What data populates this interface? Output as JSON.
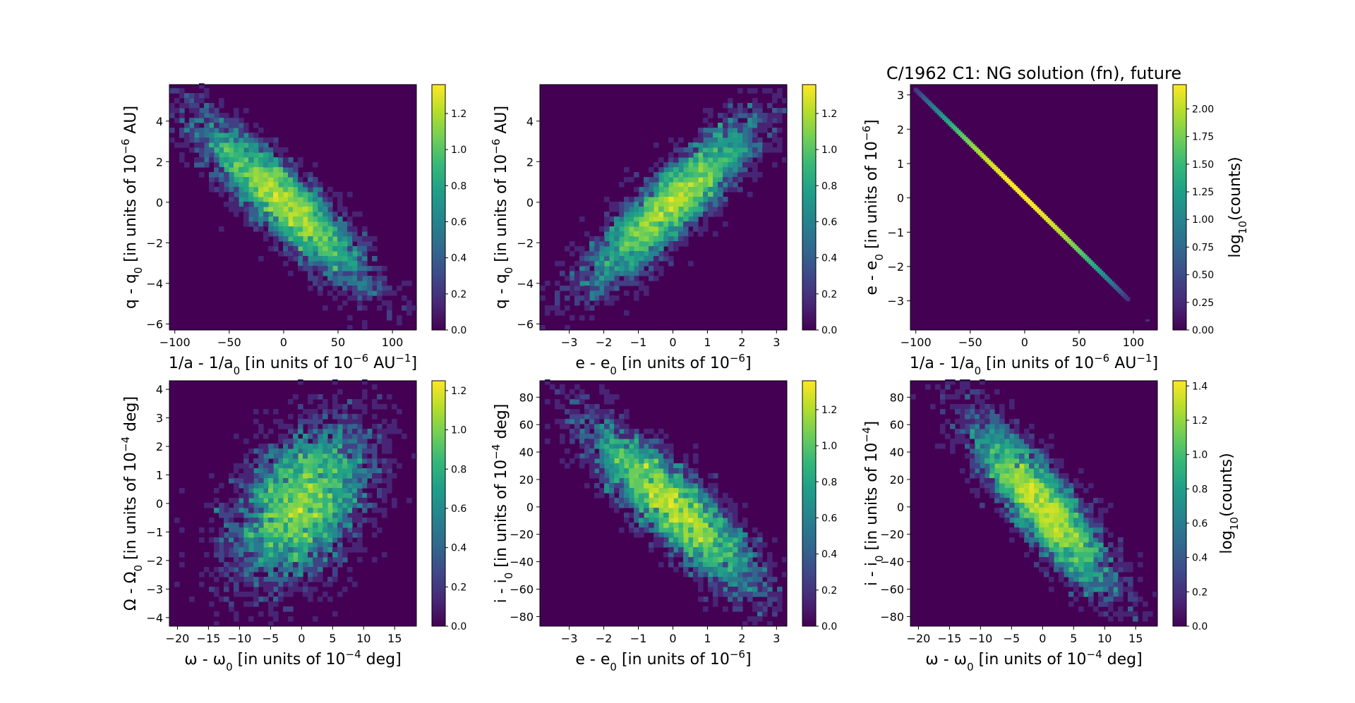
{
  "figure_title": "C/1962 C1: NG solution (fn), future",
  "chart_data": [
    {
      "type": "heatmap",
      "subtype": "hexbin",
      "id": "q-vs-inva",
      "title": "",
      "xlabel": "1/a - 1/a0 [in units of 10^-6 AU^-1]",
      "ylabel": "q - q0 [in units of 10^-6 AU]",
      "xlim": [
        -105,
        122
      ],
      "ylim": [
        -6.3,
        5.8
      ],
      "xticks": [
        -100,
        -50,
        0,
        50,
        100
      ],
      "xtick_labels": [
        "−100",
        "−50",
        "0",
        "50",
        "100"
      ],
      "yticks": [
        -6,
        -4,
        -2,
        0,
        2,
        4
      ],
      "ytick_labels": [
        "−6",
        "−4",
        "−2",
        "0",
        "2",
        "4"
      ],
      "correlation": "negative",
      "center": [
        0,
        0
      ],
      "spread_x": 38,
      "spread_y": 2.0,
      "rho": -0.88,
      "colorbar": {
        "label": "",
        "vmin": 0,
        "vmax": 1.36,
        "ticks": [
          0.0,
          0.2,
          0.4,
          0.6,
          0.8,
          1.0,
          1.2
        ],
        "tick_labels": [
          "0.0",
          "0.2",
          "0.4",
          "0.6",
          "0.8",
          "1.0",
          "1.2"
        ]
      }
    },
    {
      "type": "heatmap",
      "subtype": "hexbin",
      "id": "q-vs-e",
      "title": "",
      "xlabel": "e - e0 [in units of 10^-6]",
      "ylabel": "q - q0 [in units of 10^-6 AU]",
      "xlim": [
        -3.85,
        3.3
      ],
      "ylim": [
        -6.3,
        5.8
      ],
      "xticks": [
        -3,
        -2,
        -1,
        0,
        1,
        2,
        3
      ],
      "xtick_labels": [
        "−3",
        "−2",
        "−1",
        "0",
        "1",
        "2",
        "3"
      ],
      "yticks": [
        -6,
        -4,
        -2,
        0,
        2,
        4
      ],
      "ytick_labels": [
        "−6",
        "−4",
        "−2",
        "0",
        "2",
        "4"
      ],
      "correlation": "positive",
      "center": [
        0,
        0
      ],
      "spread_x": 1.2,
      "spread_y": 2.0,
      "rho": 0.88,
      "colorbar": {
        "label": "",
        "vmin": 0,
        "vmax": 1.36,
        "ticks": [
          0.0,
          0.2,
          0.4,
          0.6,
          0.8,
          1.0,
          1.2
        ],
        "tick_labels": [
          "0.0",
          "0.2",
          "0.4",
          "0.6",
          "0.8",
          "1.0",
          "1.2"
        ]
      }
    },
    {
      "type": "heatmap",
      "subtype": "hexbin",
      "id": "e-vs-inva",
      "title": "C/1962 C1: NG solution (fn), future",
      "xlabel": "1/a - 1/a0 [in units of 10^-6 AU^-1]",
      "ylabel": "e - e0 [in units of 10^-6]",
      "xlim": [
        -105,
        122
      ],
      "ylim": [
        -3.85,
        3.3
      ],
      "xticks": [
        -100,
        -50,
        0,
        50,
        100
      ],
      "xtick_labels": [
        "−100",
        "−50",
        "0",
        "50",
        "100"
      ],
      "yticks": [
        -3,
        -2,
        -1,
        0,
        1,
        2,
        3
      ],
      "ytick_labels": [
        "−3",
        "−2",
        "−1",
        "0",
        "1",
        "2",
        "3"
      ],
      "correlation": "perfect-negative-line",
      "line": {
        "x_start": -100,
        "y_start": 3.15,
        "x_end": 95,
        "y_end": -2.95
      },
      "colorbar": {
        "label": "log10(counts)",
        "vmin": 0,
        "vmax": 2.22,
        "ticks": [
          0.0,
          0.25,
          0.5,
          0.75,
          1.0,
          1.25,
          1.5,
          1.75,
          2.0
        ],
        "tick_labels": [
          "0.00",
          "0.25",
          "0.50",
          "0.75",
          "1.00",
          "1.25",
          "1.50",
          "1.75",
          "2.00"
        ]
      }
    },
    {
      "type": "heatmap",
      "subtype": "hexbin",
      "id": "node-vs-peri",
      "title": "",
      "xlabel": "ω - ω0 [in units of 10^-4 deg]",
      "ylabel": "Ω - Ω0 [in units of 10^-4 deg]",
      "xlim": [
        -21.3,
        18.5
      ],
      "ylim": [
        -4.3,
        4.3
      ],
      "xticks": [
        -20,
        -15,
        -10,
        -5,
        0,
        5,
        10,
        15
      ],
      "xtick_labels": [
        "−20",
        "−15",
        "−10",
        "−5",
        "0",
        "5",
        "10",
        "15"
      ],
      "yticks": [
        -4,
        -3,
        -2,
        -1,
        0,
        1,
        2,
        3,
        4
      ],
      "ytick_labels": [
        "−4",
        "−3",
        "−2",
        "−1",
        "0",
        "1",
        "2",
        "3",
        "4"
      ],
      "correlation": "weak-positive",
      "center": [
        0,
        0
      ],
      "spread_x": 5.5,
      "spread_y": 1.4,
      "rho": 0.45,
      "colorbar": {
        "label": "",
        "vmin": 0,
        "vmax": 1.25,
        "ticks": [
          0.0,
          0.2,
          0.4,
          0.6,
          0.8,
          1.0,
          1.2
        ],
        "tick_labels": [
          "0.0",
          "0.2",
          "0.4",
          "0.6",
          "0.8",
          "1.0",
          "1.2"
        ]
      }
    },
    {
      "type": "heatmap",
      "subtype": "hexbin",
      "id": "incl-vs-e",
      "title": "",
      "xlabel": "e - e0 [in units of 10^-6]",
      "ylabel": "i - i0 [in units of 10^-4 deg]",
      "xlim": [
        -3.85,
        3.3
      ],
      "ylim": [
        -87,
        92
      ],
      "xticks": [
        -3,
        -2,
        -1,
        0,
        1,
        2,
        3
      ],
      "xtick_labels": [
        "−3",
        "−2",
        "−1",
        "0",
        "1",
        "2",
        "3"
      ],
      "yticks": [
        -80,
        -60,
        -40,
        -20,
        0,
        20,
        40,
        60,
        80
      ],
      "ytick_labels": [
        "−80",
        "−60",
        "−40",
        "−20",
        "0",
        "20",
        "40",
        "60",
        "80"
      ],
      "correlation": "negative",
      "center": [
        0,
        0
      ],
      "spread_x": 1.2,
      "spread_y": 30,
      "rho": -0.85,
      "colorbar": {
        "label": "",
        "vmin": 0,
        "vmax": 1.36,
        "ticks": [
          0.0,
          0.2,
          0.4,
          0.6,
          0.8,
          1.0,
          1.2
        ],
        "tick_labels": [
          "0.0",
          "0.2",
          "0.4",
          "0.6",
          "0.8",
          "1.0",
          "1.2"
        ]
      }
    },
    {
      "type": "heatmap",
      "subtype": "hexbin",
      "id": "incl-vs-peri",
      "title": "",
      "xlabel": "ω - ω0 [in units of 10^-4 deg]",
      "ylabel": "i - i0 [in units of 10^-4]",
      "xlim": [
        -21.3,
        18.5
      ],
      "ylim": [
        -87,
        92
      ],
      "xticks": [
        -20,
        -15,
        -10,
        -5,
        0,
        5,
        10,
        15
      ],
      "xtick_labels": [
        "−20",
        "−15",
        "−10",
        "−5",
        "0",
        "5",
        "10",
        "15"
      ],
      "yticks": [
        -80,
        -60,
        -40,
        -20,
        0,
        20,
        40,
        60,
        80
      ],
      "ytick_labels": [
        "−80",
        "−60",
        "−40",
        "−20",
        "0",
        "20",
        "40",
        "60",
        "80"
      ],
      "correlation": "negative",
      "center": [
        0,
        0
      ],
      "spread_x": 5.5,
      "spread_y": 30,
      "rho": -0.85,
      "colorbar": {
        "label": "log10(counts)",
        "vmin": 0,
        "vmax": 1.43,
        "ticks": [
          0.0,
          0.2,
          0.4,
          0.6,
          0.8,
          1.0,
          1.2,
          1.4
        ],
        "tick_labels": [
          "0.0",
          "0.2",
          "0.4",
          "0.6",
          "0.8",
          "1.0",
          "1.2",
          "1.4"
        ]
      }
    }
  ],
  "labels": {
    "p0": {
      "x_main": "1/a - 1/a",
      "x_sub": "0",
      "x_rest": " [in units of 10",
      "x_sup": "−6",
      "x_tail": " AU",
      "x_sup2": "−1",
      "x_end": "]",
      "y_main": "q - q",
      "y_sub": "0",
      "y_rest": " [in units of 10",
      "y_sup": "−6",
      "y_tail": " AU]"
    },
    "p1": {
      "x_main": "e - e",
      "x_sub": "0",
      "x_rest": " [in units of 10",
      "x_sup": "−6",
      "x_tail": "]",
      "y_main": "q - q",
      "y_sub": "0",
      "y_rest": " [in units of 10",
      "y_sup": "−6",
      "y_tail": " AU]"
    },
    "p2": {
      "x_main": "1/a - 1/a",
      "x_sub": "0",
      "x_rest": " [in units of 10",
      "x_sup": "−6",
      "x_tail": " AU",
      "x_sup2": "−1",
      "x_end": "]",
      "y_main": "e - e",
      "y_sub": "0",
      "y_rest": " [in units of 10",
      "y_sup": "−6",
      "y_tail": "]",
      "cb_main": "log",
      "cb_sub": "10",
      "cb_tail": "(counts)"
    },
    "p3": {
      "x_main": "ω - ω",
      "x_sub": "0",
      "x_rest": " [in units of 10",
      "x_sup": "−4",
      "x_tail": " deg]",
      "y_main": "Ω - Ω",
      "y_sub": "0",
      "y_rest": " [in units of 10",
      "y_sup": "−4",
      "y_tail": " deg]"
    },
    "p4": {
      "x_main": "e - e",
      "x_sub": "0",
      "x_rest": " [in units of 10",
      "x_sup": "−6",
      "x_tail": "]",
      "y_main": "i - i",
      "y_sub": "0",
      "y_rest": " [in units of 10",
      "y_sup": "−4",
      "y_tail": " deg]"
    },
    "p5": {
      "x_main": "ω - ω",
      "x_sub": "0",
      "x_rest": " [in units of 10",
      "x_sup": "−4",
      "x_tail": " deg]",
      "y_main": "i - i",
      "y_sub": "0",
      "y_rest": " [in units of 10",
      "y_sup": "−4",
      "y_tail": "]",
      "cb_main": "log",
      "cb_sub": "10",
      "cb_tail": "(counts)"
    }
  },
  "colors": {
    "background": "#440154",
    "viridis": [
      "#440154",
      "#482878",
      "#3e4989",
      "#31688e",
      "#26828e",
      "#1f9e89",
      "#35b779",
      "#6ece58",
      "#b5de2b",
      "#fde725"
    ]
  }
}
